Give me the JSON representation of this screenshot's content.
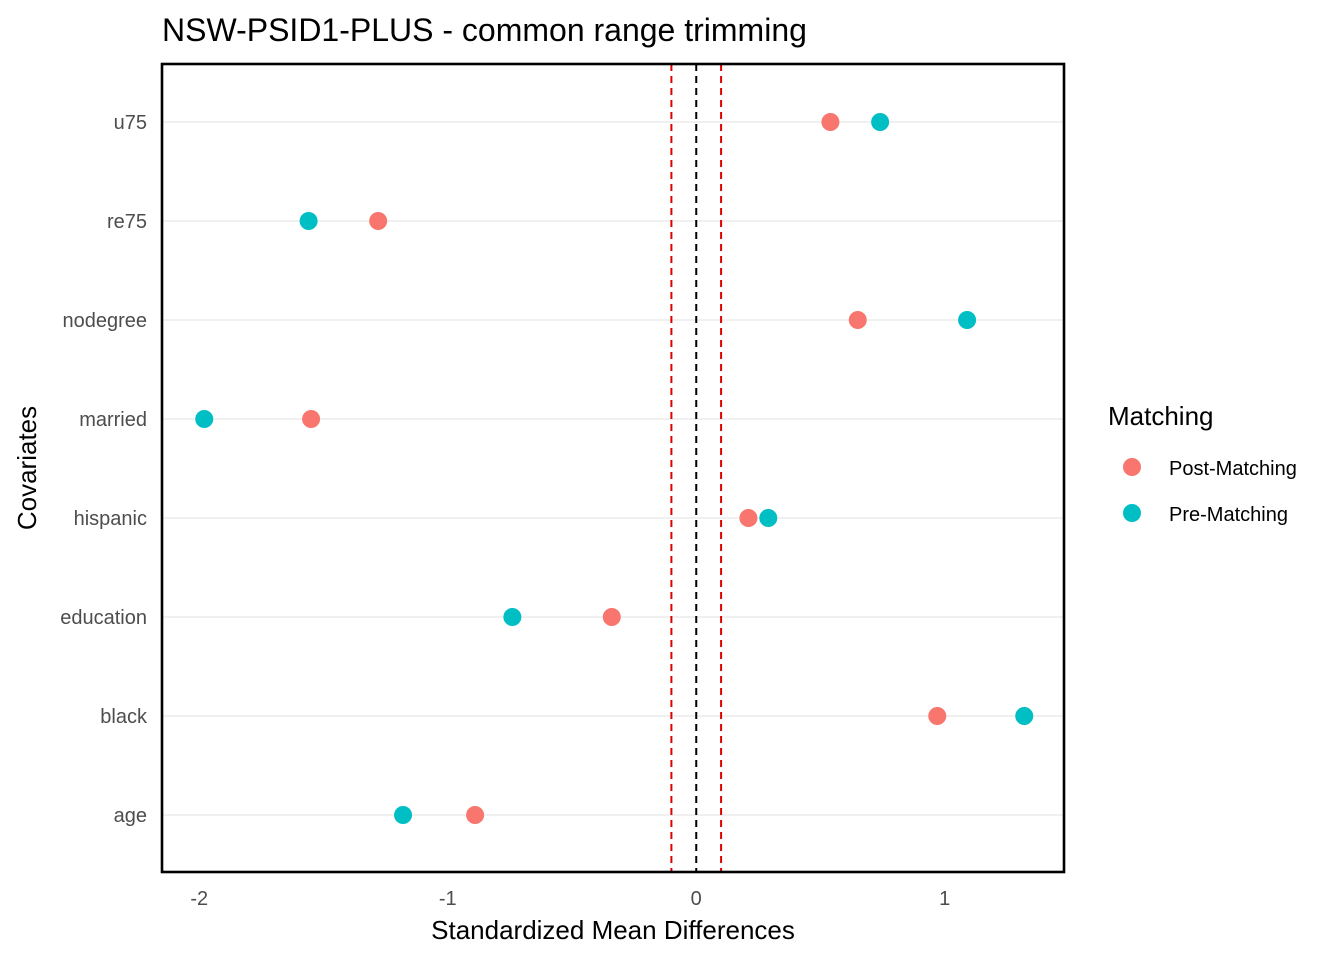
{
  "chart_data": {
    "type": "scatter",
    "title": "NSW-PSID1-PLUS - common range trimming",
    "xlabel": "Standardized Mean Differences",
    "ylabel": "Covariates",
    "xlim": [
      -2.15,
      1.48
    ],
    "x_ticks": [
      -2,
      -1,
      0,
      1
    ],
    "x_tick_labels": [
      "-2",
      "-1",
      "0",
      "1"
    ],
    "categories": [
      "age",
      "black",
      "education",
      "hispanic",
      "married",
      "nodegree",
      "re75",
      "u75"
    ],
    "series": [
      {
        "name": "Post-Matching",
        "color": "#F8766D",
        "values": [
          -0.89,
          0.97,
          -0.34,
          0.21,
          -1.55,
          0.65,
          -1.28,
          0.54
        ]
      },
      {
        "name": "Pre-Matching",
        "color": "#00BFC4",
        "values": [
          -1.18,
          1.32,
          -0.74,
          0.29,
          -1.98,
          1.09,
          -1.56,
          0.74
        ]
      }
    ],
    "reference_lines": [
      {
        "x": 0,
        "color": "#000000",
        "style": "dashed"
      },
      {
        "x": -0.1,
        "color": "#E00000",
        "style": "dashed"
      },
      {
        "x": 0.1,
        "color": "#E00000",
        "style": "dashed"
      }
    ],
    "legend": {
      "title": "Matching",
      "position": "right"
    },
    "grid": true
  }
}
